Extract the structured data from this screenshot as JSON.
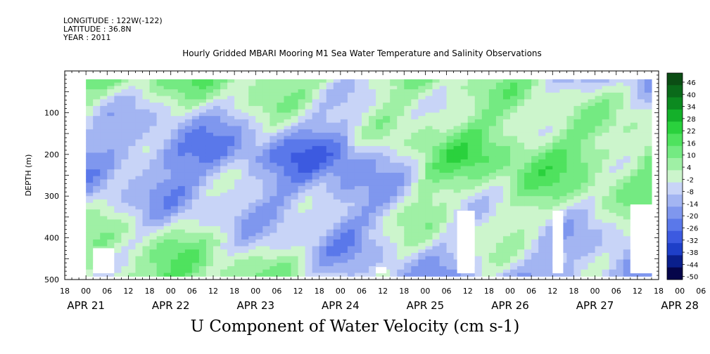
{
  "header": {
    "longitude": "LONGITUDE : 122W(-122)",
    "latitude": "LATITUDE : 36.8N",
    "year": "YEAR : 2011"
  },
  "chart_data": {
    "type": "heatmap",
    "title": "Hourly Gridded MBARI Mooring M1 Sea Water Temperature and Salinity Observations",
    "main_label": "U Component of Water Velocity (cm s-1)",
    "ylabel": "DEPTH (m)",
    "y_ticks": [
      100,
      200,
      300,
      400,
      500
    ],
    "y_tick_labels": [
      "100",
      "200",
      "300",
      "400",
      "500"
    ],
    "ylim": [
      500,
      0
    ],
    "data_depth_range": [
      20,
      485
    ],
    "x_hour_labels": [
      "18",
      "00",
      "06",
      "12",
      "18",
      "00",
      "06",
      "12",
      "18",
      "00",
      "06",
      "12",
      "18",
      "00",
      "06",
      "12",
      "18",
      "00",
      "06",
      "12",
      "18",
      "00",
      "06",
      "12",
      "18",
      "00",
      "06",
      "12",
      "18",
      "00",
      "06",
      "12"
    ],
    "x_date_labels": [
      "APR 21",
      "APR 22",
      "APR 23",
      "APR 24",
      "APR 25",
      "APR 26",
      "APR 27",
      "APR 28"
    ],
    "x_time_range_hours": [
      "APR 21 18:00",
      "APR 28 18:00"
    ],
    "colorbar_labels": [
      "46",
      "40",
      "34",
      "28",
      "22",
      "16",
      "10",
      "4",
      "-2",
      "-8",
      "-14",
      "-20",
      "-26",
      "-32",
      "-38",
      "-44",
      "-50"
    ],
    "colorbar_range": [
      -50,
      52
    ],
    "colormap": [
      "#05054a",
      "#0a1f8c",
      "#1e3fc8",
      "#3c5ae0",
      "#5a78ea",
      "#7f97ee",
      "#a3b5f2",
      "#c8d4f7",
      "#ccf5cc",
      "#9ff0a5",
      "#74ea82",
      "#4fe25e",
      "#2ad13d",
      "#14b02a",
      "#0c8a20",
      "#0a6a1a",
      "#0b4d14"
    ],
    "field_summary": {
      "u_pattern_bands_by_time": [
        {
          "day": "APR 22",
          "value_top": 10,
          "value_mid": -14,
          "value_deep": 8
        },
        {
          "day": "APR 23",
          "value_top": 6,
          "value_mid": -20,
          "value_deep": 12
        },
        {
          "day": "APR 24",
          "value_top": 8,
          "value_mid": -16,
          "value_deep": 4
        },
        {
          "day": "APR 25",
          "value_top": 4,
          "value_mid": -22,
          "value_deep": -6
        },
        {
          "day": "APR 26",
          "value_top": 6,
          "value_mid": 10,
          "value_deep": -8
        },
        {
          "day": "APR 27",
          "value_top": 2,
          "value_mid": 14,
          "value_deep": -10
        },
        {
          "day": "APR 28",
          "value_top": -8,
          "value_mid": 12,
          "value_deep": -14
        }
      ]
    }
  }
}
